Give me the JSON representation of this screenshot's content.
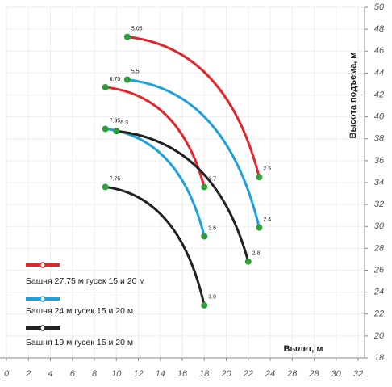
{
  "chart_data": {
    "type": "line",
    "x_label": "Вылет, м",
    "y_label": "Высота подъема, м",
    "xlim": [
      0,
      32
    ],
    "ylim": [
      18,
      50
    ],
    "xticks": [
      0,
      2,
      4,
      6,
      8,
      10,
      12,
      14,
      16,
      18,
      20,
      22,
      24,
      26,
      28,
      30,
      32
    ],
    "yticks": [
      18,
      20,
      22,
      24,
      26,
      28,
      30,
      32,
      34,
      36,
      38,
      40,
      42,
      44,
      46,
      48,
      50
    ],
    "grid": true,
    "marker_color": "#2e9e3a",
    "series": [
      {
        "name": "Башня 27,75 м гусек 15 и 20 м",
        "color": "#e3262b",
        "curves": [
          {
            "x": [
              11,
              23
            ],
            "values": [
              47.3,
              34.5
            ],
            "point_labels": [
              "5.05",
              "2.5"
            ]
          },
          {
            "x": [
              9,
              18
            ],
            "values": [
              42.7,
              33.6
            ],
            "point_labels": [
              "6.75",
              "3.7"
            ]
          }
        ]
      },
      {
        "name": "Башня 24 м гусек 15 и 20 м",
        "color": "#1ea0dc",
        "curves": [
          {
            "x": [
              11,
              23
            ],
            "values": [
              43.4,
              29.9
            ],
            "point_labels": [
              "5.5",
              "2.4"
            ]
          },
          {
            "x": [
              9,
              18
            ],
            "values": [
              38.9,
              29.1
            ],
            "point_labels": [
              "7.35",
              "3.6"
            ]
          }
        ]
      },
      {
        "name": "Башня 19 м гусек 15 и 20 м",
        "color": "#222222",
        "curves": [
          {
            "x": [
              10,
              22
            ],
            "values": [
              38.7,
              26.8
            ],
            "point_labels": [
              "6.3",
              "2.8"
            ]
          },
          {
            "x": [
              9,
              18
            ],
            "values": [
              33.6,
              22.8
            ],
            "point_labels": [
              "7.75",
              "3.0"
            ]
          }
        ]
      }
    ]
  }
}
